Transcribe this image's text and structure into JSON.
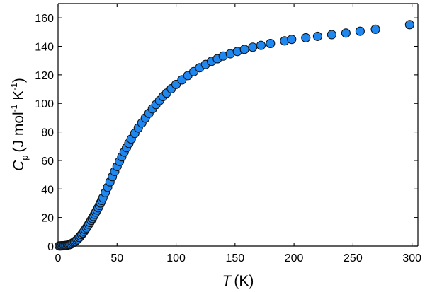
{
  "chart_data": {
    "type": "scatter",
    "title": "",
    "xlabel": {
      "symbol": "T",
      "unit": "(K)"
    },
    "ylabel": {
      "symbol": "C",
      "subscript": "p",
      "unit_open": "(J mol",
      "sup1": "-1",
      "unit_mid": " K",
      "sup2": "-1",
      "unit_close": ")"
    },
    "xlim": [
      0,
      305
    ],
    "ylim": [
      0,
      170
    ],
    "xticks": [
      0,
      50,
      100,
      150,
      200,
      250,
      300
    ],
    "yticks": [
      0,
      20,
      40,
      60,
      80,
      100,
      120,
      140,
      160
    ],
    "grid": false,
    "marker_color": "#1e88f0",
    "marker_edge_color": "#111111",
    "series": [
      {
        "name": "Cp",
        "points": [
          [
            1,
            0.1
          ],
          [
            2,
            0.1
          ],
          [
            3,
            0.2
          ],
          [
            4,
            0.2
          ],
          [
            5,
            0.3
          ],
          [
            6,
            0.4
          ],
          [
            7,
            0.5
          ],
          [
            8,
            0.7
          ],
          [
            9,
            0.9
          ],
          [
            10,
            1.1
          ],
          [
            11,
            1.5
          ],
          [
            12,
            2
          ],
          [
            13,
            2.5
          ],
          [
            14,
            3
          ],
          [
            15,
            3.7
          ],
          [
            16,
            4.4
          ],
          [
            17,
            5.2
          ],
          [
            18,
            6.1
          ],
          [
            19,
            7.1
          ],
          [
            20,
            8.1
          ],
          [
            21,
            9.2
          ],
          [
            22,
            10.3
          ],
          [
            23,
            11.5
          ],
          [
            24,
            12.7
          ],
          [
            25,
            14
          ],
          [
            26,
            15.3
          ],
          [
            27,
            16.6
          ],
          [
            28,
            18
          ],
          [
            29,
            19.4
          ],
          [
            30,
            20.8
          ],
          [
            31,
            22.3
          ],
          [
            32,
            23.8
          ],
          [
            33,
            25.3
          ],
          [
            34,
            26.8
          ],
          [
            35,
            28.5
          ],
          [
            36,
            30.2
          ],
          [
            37,
            32
          ],
          [
            38,
            33.8
          ],
          [
            40,
            37.5
          ],
          [
            42,
            41.2
          ],
          [
            44,
            45
          ],
          [
            46,
            48.7
          ],
          [
            48,
            52.3
          ],
          [
            50,
            55.8
          ],
          [
            52,
            59.3
          ],
          [
            54,
            62.6
          ],
          [
            56,
            65.9
          ],
          [
            58,
            69
          ],
          [
            60,
            72
          ],
          [
            62,
            75
          ],
          [
            65,
            79
          ],
          [
            68,
            82.8
          ],
          [
            71,
            86.3
          ],
          [
            74,
            89.8
          ],
          [
            77,
            93
          ],
          [
            80,
            96.2
          ],
          [
            83,
            99.2
          ],
          [
            86,
            102
          ],
          [
            89,
            104.8
          ],
          [
            92,
            107.2
          ],
          [
            96,
            110.3
          ],
          [
            100,
            113.3
          ],
          [
            105,
            116.5
          ],
          [
            110,
            119.5
          ],
          [
            115,
            122.3
          ],
          [
            120,
            125
          ],
          [
            125,
            127.3
          ],
          [
            130,
            129.5
          ],
          [
            135,
            131.3
          ],
          [
            140,
            133.2
          ],
          [
            146,
            134.8
          ],
          [
            152,
            136.4
          ],
          [
            158,
            137.9
          ],
          [
            165,
            139.4
          ],
          [
            172,
            140.7
          ],
          [
            180,
            142
          ],
          [
            192,
            143.8
          ],
          [
            198,
            144.9
          ],
          [
            210,
            146
          ],
          [
            220,
            147
          ],
          [
            232,
            148.2
          ],
          [
            244,
            149.3
          ],
          [
            256,
            150.6
          ],
          [
            269,
            152
          ],
          [
            298,
            155.2
          ]
        ]
      }
    ]
  }
}
